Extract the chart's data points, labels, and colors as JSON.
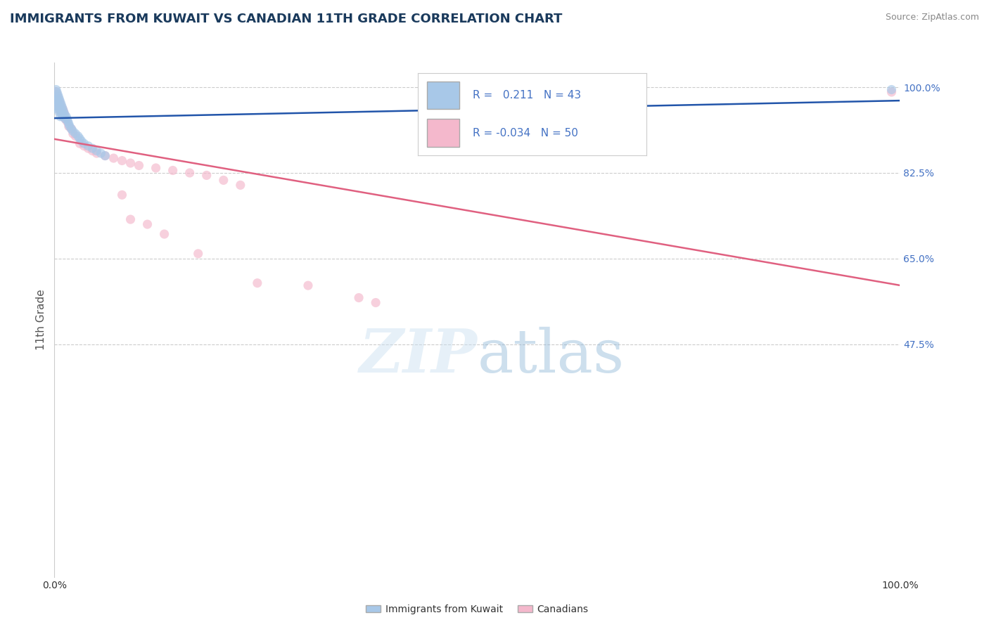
{
  "title": "IMMIGRANTS FROM KUWAIT VS CANADIAN 11TH GRADE CORRELATION CHART",
  "source": "Source: ZipAtlas.com",
  "ylabel": "11th Grade",
  "xlim": [
    0,
    1
  ],
  "ylim": [
    0,
    1.05
  ],
  "title_color": "#1a3a5c",
  "title_fontsize": 13,
  "source_color": "#888888",
  "source_fontsize": 9,
  "tick_label_color_right": "#4472c4",
  "background_color": "#ffffff",
  "grid_color": "#cccccc",
  "legend_R_blue": "0.211",
  "legend_N_blue": "43",
  "legend_R_pink": "-0.034",
  "legend_N_pink": "50",
  "blue_color": "#a8c8e8",
  "pink_color": "#f4b8cc",
  "blue_line_color": "#2255aa",
  "pink_line_color": "#e06080",
  "blue_scatter_x": [
    0.002,
    0.002,
    0.003,
    0.003,
    0.003,
    0.004,
    0.004,
    0.004,
    0.005,
    0.005,
    0.005,
    0.006,
    0.006,
    0.007,
    0.007,
    0.007,
    0.008,
    0.008,
    0.009,
    0.009,
    0.01,
    0.01,
    0.011,
    0.012,
    0.013,
    0.014,
    0.015,
    0.016,
    0.017,
    0.018,
    0.02,
    0.022,
    0.025,
    0.028,
    0.03,
    0.032,
    0.035,
    0.04,
    0.045,
    0.05,
    0.055,
    0.06,
    0.99
  ],
  "blue_scatter_y": [
    0.995,
    0.975,
    0.99,
    0.975,
    0.96,
    0.985,
    0.97,
    0.955,
    0.98,
    0.965,
    0.95,
    0.975,
    0.96,
    0.97,
    0.955,
    0.94,
    0.965,
    0.95,
    0.96,
    0.945,
    0.955,
    0.94,
    0.95,
    0.945,
    0.935,
    0.94,
    0.935,
    0.93,
    0.925,
    0.92,
    0.915,
    0.91,
    0.905,
    0.9,
    0.895,
    0.89,
    0.885,
    0.88,
    0.875,
    0.87,
    0.865,
    0.86,
    0.995
  ],
  "pink_scatter_x": [
    0.002,
    0.002,
    0.003,
    0.003,
    0.004,
    0.004,
    0.005,
    0.005,
    0.006,
    0.006,
    0.007,
    0.007,
    0.008,
    0.009,
    0.01,
    0.01,
    0.011,
    0.012,
    0.013,
    0.015,
    0.017,
    0.02,
    0.022,
    0.025,
    0.03,
    0.035,
    0.04,
    0.045,
    0.05,
    0.06,
    0.07,
    0.08,
    0.09,
    0.1,
    0.12,
    0.14,
    0.16,
    0.18,
    0.2,
    0.22,
    0.08,
    0.09,
    0.11,
    0.13,
    0.17,
    0.24,
    0.3,
    0.36,
    0.38,
    0.99
  ],
  "pink_scatter_y": [
    0.99,
    0.975,
    0.985,
    0.97,
    0.98,
    0.965,
    0.975,
    0.96,
    0.97,
    0.955,
    0.965,
    0.95,
    0.96,
    0.955,
    0.955,
    0.94,
    0.95,
    0.945,
    0.935,
    0.93,
    0.92,
    0.915,
    0.905,
    0.9,
    0.885,
    0.88,
    0.875,
    0.87,
    0.865,
    0.86,
    0.855,
    0.85,
    0.845,
    0.84,
    0.835,
    0.83,
    0.825,
    0.82,
    0.81,
    0.8,
    0.78,
    0.73,
    0.72,
    0.7,
    0.66,
    0.6,
    0.595,
    0.57,
    0.56,
    0.99
  ],
  "marker_size": 90,
  "marker_alpha": 0.65
}
